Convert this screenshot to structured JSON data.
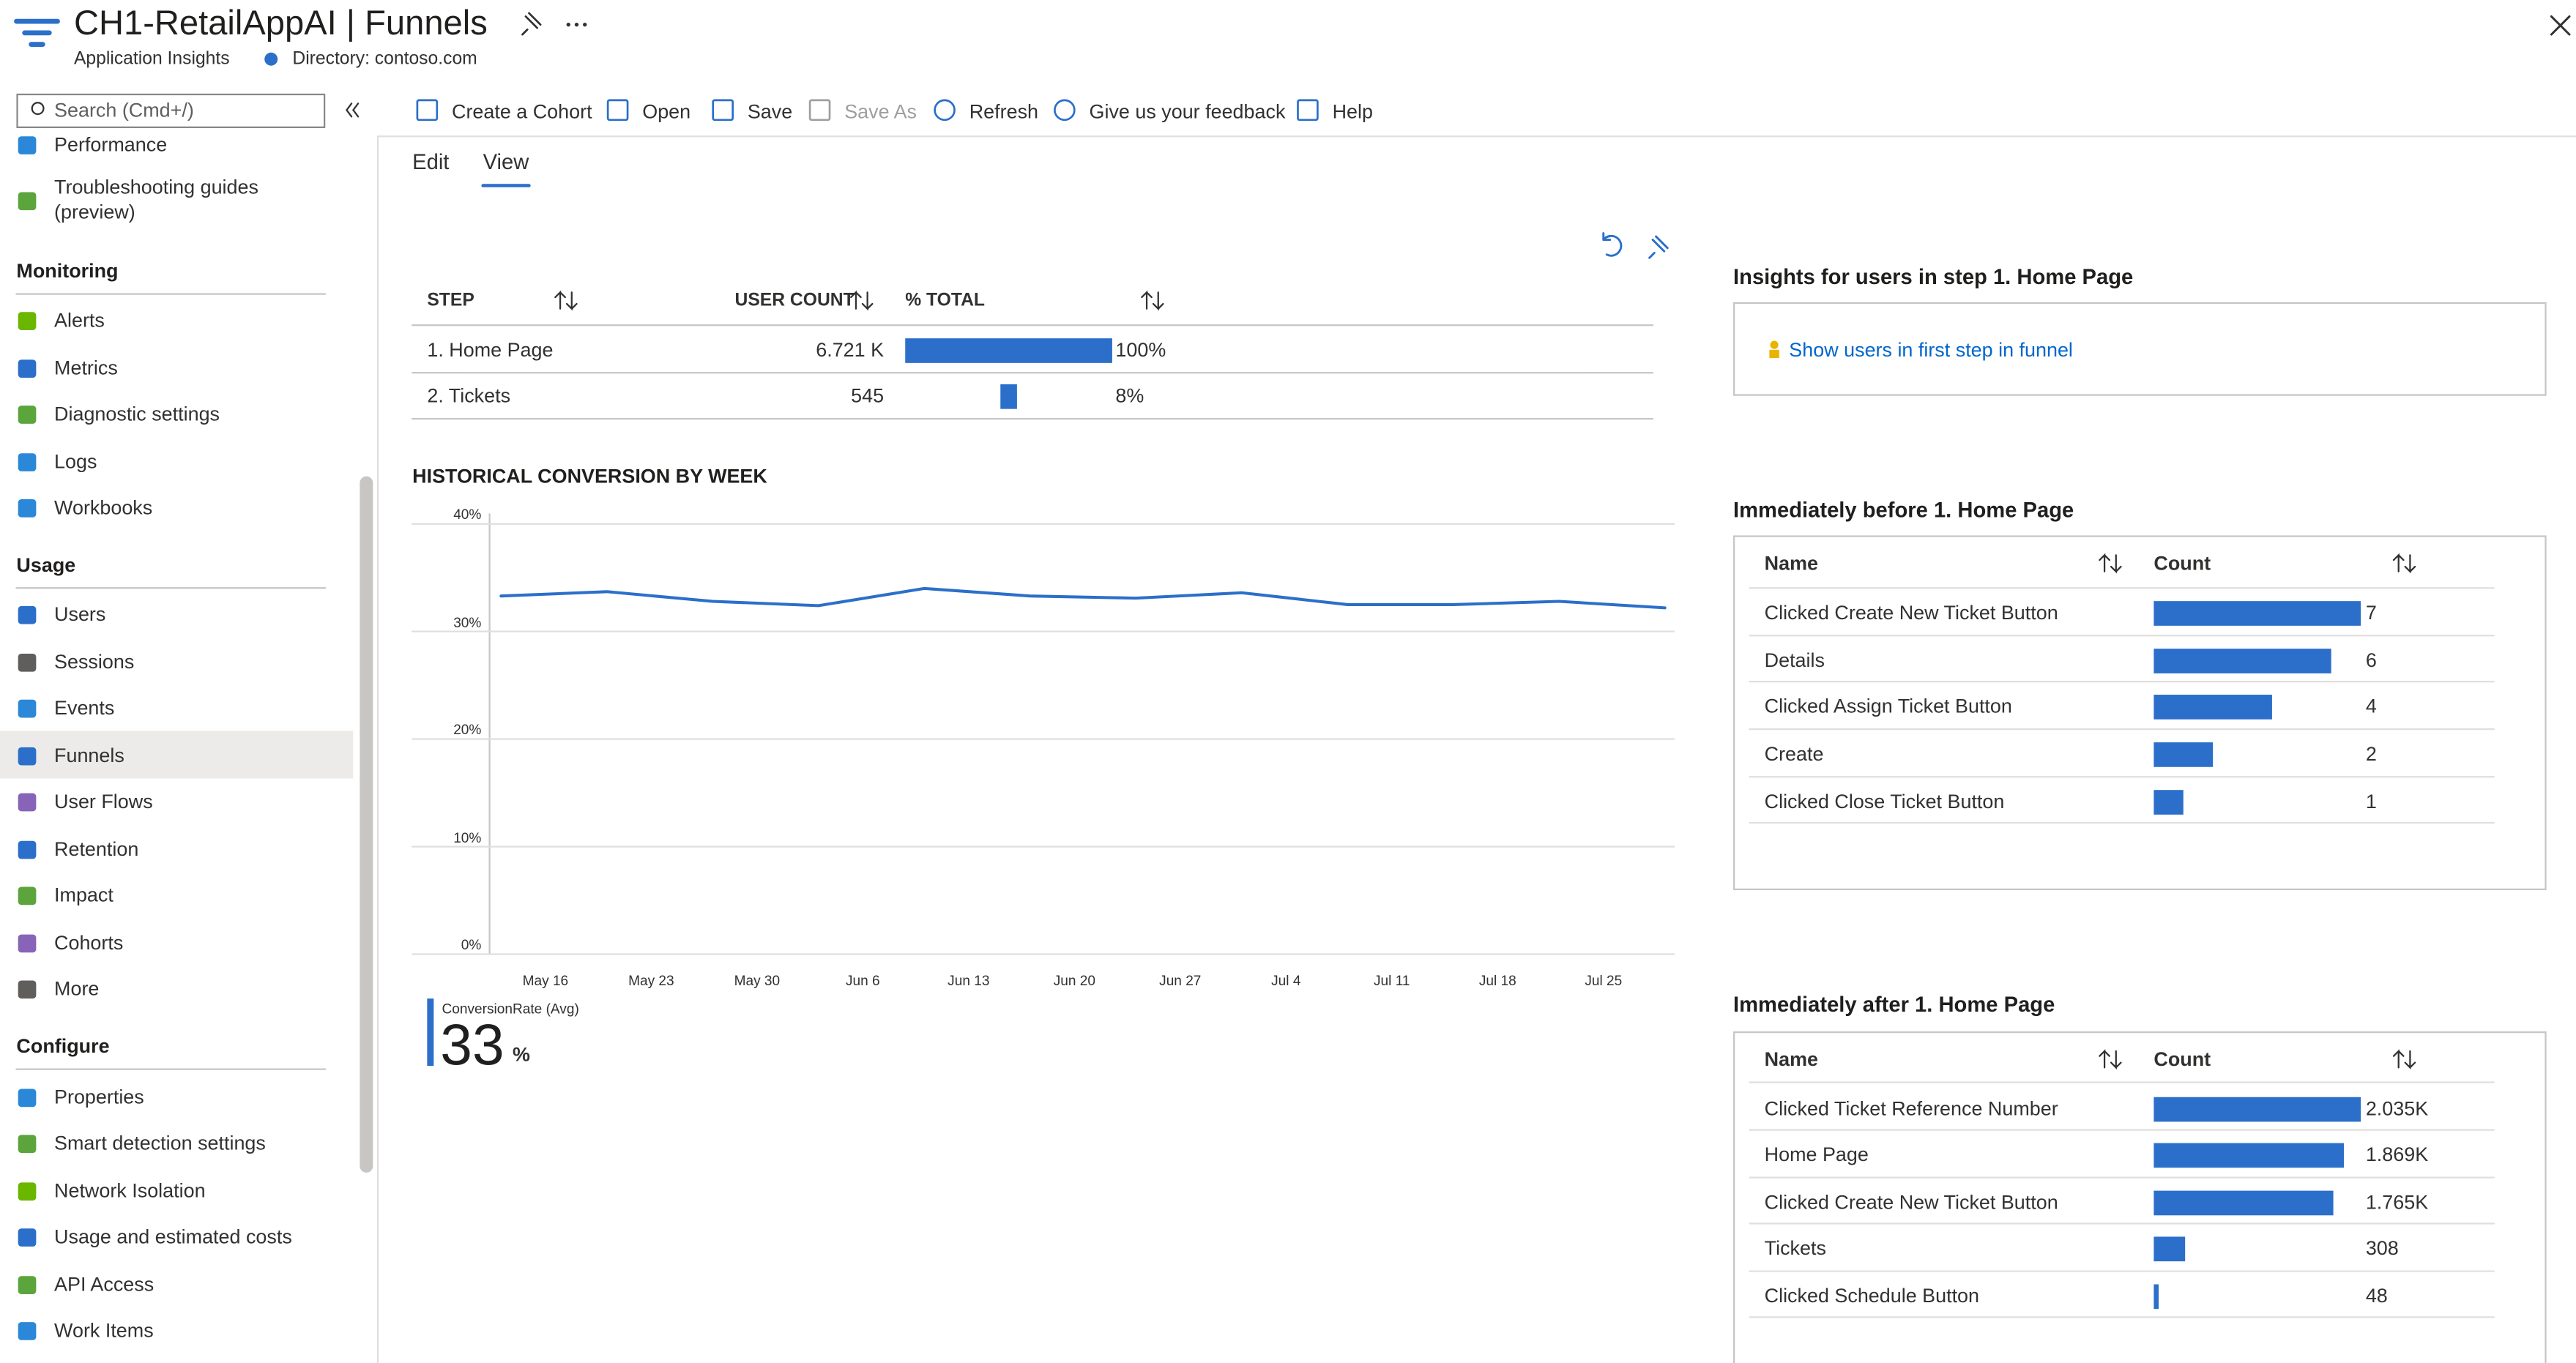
{
  "header": {
    "title": "CH1-RetailAppAI | Funnels",
    "subtitle": "Application Insights",
    "directory": "Directory: contoso.com"
  },
  "sidebar": {
    "search": "Search (Cmd+/)",
    "sections": [
      {
        "items": [
          "Performance",
          "Troubleshooting guides (preview)"
        ]
      },
      {
        "heading": "Monitoring",
        "items": [
          "Alerts",
          "Metrics",
          "Diagnostic settings",
          "Logs",
          "Workbooks"
        ]
      },
      {
        "heading": "Usage",
        "items": [
          "Users",
          "Sessions",
          "Events",
          "Funnels",
          "User Flows",
          "Retention",
          "Impact",
          "Cohorts",
          "More"
        ]
      },
      {
        "heading": "Configure",
        "items": [
          "Properties",
          "Smart detection settings",
          "Network Isolation",
          "Usage and estimated costs",
          "API Access",
          "Work Items"
        ]
      }
    ]
  },
  "toolbar": [
    "Create a Cohort",
    "Open",
    "Save",
    "Save As",
    "Refresh",
    "Give us your feedback",
    "Help"
  ],
  "tabs": [
    "Edit",
    "View"
  ],
  "funnel": {
    "columns": [
      "STEP",
      "USER COUNT",
      "% TOTAL"
    ],
    "rows": [
      {
        "step": "1. Home Page",
        "user_count": "6.721 K",
        "percent": 100,
        "percent_label": "100%"
      },
      {
        "step": "2. Tickets",
        "user_count": "545",
        "percent": 8,
        "percent_label": "8%"
      }
    ]
  },
  "chart_data": {
    "type": "line",
    "title": "HISTORICAL CONVERSION BY WEEK",
    "categories": [
      "May 16",
      "May 23",
      "May 30",
      "Jun 6",
      "Jun 13",
      "Jun 20",
      "Jun 27",
      "Jul 4",
      "Jul 11",
      "Jul 18",
      "Jul 25",
      null
    ],
    "series": [
      {
        "name": "ConversionRate (Avg)",
        "color": "#2b6fca",
        "values": [
          33.3,
          33.7,
          32.8,
          32.4,
          34.0,
          33.3,
          33.1,
          33.6,
          32.5,
          32.5,
          32.8,
          32.2
        ]
      }
    ],
    "ylim": [
      0,
      40
    ],
    "yticks": [
      {
        "value": 0,
        "label": "0%"
      },
      {
        "value": 10,
        "label": "10%"
      },
      {
        "value": 20,
        "label": "20%"
      },
      {
        "value": 30,
        "label": "30%"
      },
      {
        "value": 40,
        "label": "40%"
      }
    ],
    "grid": true,
    "summary": {
      "value": 33,
      "unit": "%"
    }
  },
  "insights": {
    "title": "Insights for users in step 1. Home Page",
    "link": "Show users in first step in funnel"
  },
  "before": {
    "title": "Immediately before 1. Home Page",
    "columns": [
      "Name",
      "Count"
    ],
    "rows": [
      {
        "name": "Clicked Create New Ticket Button",
        "count": 7
      },
      {
        "name": "Details",
        "count": 6
      },
      {
        "name": "Clicked Assign Ticket Button",
        "count": 4
      },
      {
        "name": "Create",
        "count": 2
      },
      {
        "name": "Clicked Close Ticket Button",
        "count": 1
      }
    ]
  },
  "after": {
    "title": "Immediately after 1. Home Page",
    "columns": [
      "Name",
      "Count"
    ],
    "rows": [
      {
        "name": "Clicked Ticket Reference Number",
        "count": 2035,
        "count_label": "2.035K"
      },
      {
        "name": "Home Page",
        "count": 1869,
        "count_label": "1.869K"
      },
      {
        "name": "Clicked Create New Ticket Button",
        "count": 1765,
        "count_label": "1.765K"
      },
      {
        "name": "Tickets",
        "count": 308
      },
      {
        "name": "Clicked Schedule Button",
        "count": 48
      }
    ]
  }
}
